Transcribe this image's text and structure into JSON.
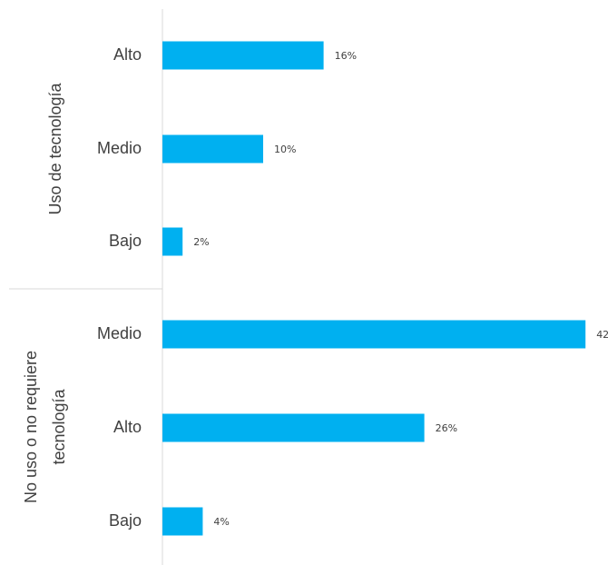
{
  "chart_data": {
    "type": "bar",
    "orientation": "horizontal",
    "value_suffix": "%",
    "bar_color": "#00B0F0",
    "grid": false,
    "groups": [
      {
        "label": "Uso de tecnología",
        "categories": [
          "Alto",
          "Medio",
          "Bajo"
        ],
        "values": [
          16,
          10,
          2
        ]
      },
      {
        "label": "No uso o no requiere tecnología",
        "label_lines": [
          "No uso o no requiere",
          "tecnología"
        ],
        "categories": [
          "Medio",
          "Alto",
          "Bajo"
        ],
        "values": [
          42,
          26,
          4
        ]
      }
    ]
  }
}
